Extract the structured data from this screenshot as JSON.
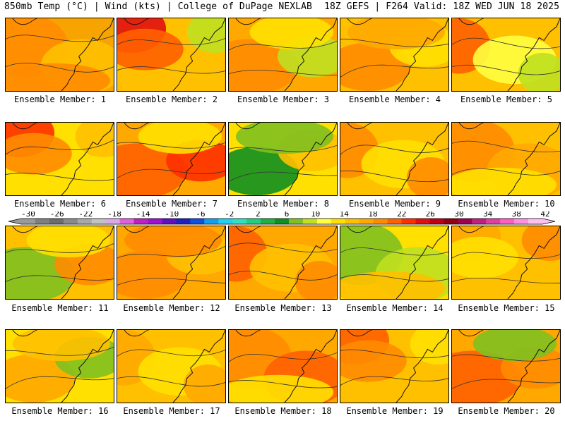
{
  "header": {
    "left": "850mb Temp (°C) | Wind (kts) | College of DuPage NEXLAB",
    "right": "18Z GEFS | F264 Valid: 18Z WED JUN 18 2025"
  },
  "colorbar": {
    "labels": [
      "-30",
      "-26",
      "-22",
      "-18",
      "-14",
      "-10",
      "-6",
      "-2",
      "2",
      "6",
      "10",
      "14",
      "18",
      "22",
      "26",
      "30",
      "34",
      "38",
      "42"
    ],
    "colors": [
      "#9a9a9a",
      "#7f7f7f",
      "#6c6c6c",
      "#8a8a8a",
      "#a8a8a8",
      "#c2c2c2",
      "#d8a8e8",
      "#e060e0",
      "#c020c0",
      "#a010d0",
      "#6010c0",
      "#2020c0",
      "#1050e0",
      "#10a0f0",
      "#20d0f0",
      "#30e0c0",
      "#20d080",
      "#20b040",
      "#109020",
      "#80c020",
      "#c0e020",
      "#ffff40",
      "#ffe000",
      "#ffc000",
      "#ffa800",
      "#ff8c00",
      "#ff6000",
      "#ff3000",
      "#e01010",
      "#c00010",
      "#900010",
      "#a00050",
      "#c02080",
      "#e040a0",
      "#ff60c0",
      "#ff90e0",
      "#ffc0f0"
    ]
  },
  "panels": [
    {
      "label": "Ensemble Member: 1",
      "base": "#f7a400",
      "blobs": [
        {
          "c": "#ff8c00"
        },
        {
          "c": "#ffc000"
        },
        {
          "c": "#ff8c00"
        }
      ]
    },
    {
      "label": "Ensemble Member: 2",
      "base": "#ffc000",
      "blobs": [
        {
          "c": "#e01010"
        },
        {
          "c": "#ff6000"
        },
        {
          "c": "#c0e020"
        }
      ]
    },
    {
      "label": "Ensemble Member: 3",
      "base": "#ffa800",
      "blobs": [
        {
          "c": "#ff8c00"
        },
        {
          "c": "#c0e020"
        },
        {
          "c": "#ffe000"
        }
      ]
    },
    {
      "label": "Ensemble Member: 4",
      "base": "#ffc000",
      "blobs": [
        {
          "c": "#ff8c00"
        },
        {
          "c": "#ffe000"
        },
        {
          "c": "#ffa800"
        }
      ]
    },
    {
      "label": "Ensemble Member: 5",
      "base": "#ffc000",
      "blobs": [
        {
          "c": "#ff6000"
        },
        {
          "c": "#ffff40"
        },
        {
          "c": "#c0e020"
        }
      ]
    },
    {
      "label": "Ensemble Member: 6",
      "base": "#ffe000",
      "blobs": [
        {
          "c": "#ff3000"
        },
        {
          "c": "#ff8c00"
        },
        {
          "c": "#ffc000"
        }
      ]
    },
    {
      "label": "Ensemble Member: 7",
      "base": "#ffa800",
      "blobs": [
        {
          "c": "#ff6000"
        },
        {
          "c": "#ff3000"
        },
        {
          "c": "#ffe000"
        }
      ]
    },
    {
      "label": "Ensemble Member: 8",
      "base": "#ffe000",
      "blobs": [
        {
          "c": "#109020"
        },
        {
          "c": "#ffc000"
        },
        {
          "c": "#80c020"
        }
      ]
    },
    {
      "label": "Ensemble Member: 9",
      "base": "#ffc000",
      "blobs": [
        {
          "c": "#ff8c00"
        },
        {
          "c": "#ffe000"
        },
        {
          "c": "#ff8c00"
        }
      ]
    },
    {
      "label": "Ensemble Member: 10",
      "base": "#ffc000",
      "blobs": [
        {
          "c": "#ff8c00"
        },
        {
          "c": "#ffa800"
        },
        {
          "c": "#ffe000"
        }
      ]
    },
    {
      "label": "Ensemble Member: 11",
      "base": "#ffc000",
      "blobs": [
        {
          "c": "#80c020"
        },
        {
          "c": "#ff8c00"
        },
        {
          "c": "#ffe000"
        }
      ]
    },
    {
      "label": "Ensemble Member: 12",
      "base": "#ffa800",
      "blobs": [
        {
          "c": "#ff8c00"
        },
        {
          "c": "#ffc000"
        },
        {
          "c": "#ff8c00"
        }
      ]
    },
    {
      "label": "Ensemble Member: 13",
      "base": "#ffa800",
      "blobs": [
        {
          "c": "#ff6000"
        },
        {
          "c": "#ffc000"
        },
        {
          "c": "#ff8c00"
        }
      ]
    },
    {
      "label": "Ensemble Member: 14",
      "base": "#ffe000",
      "blobs": [
        {
          "c": "#80c020"
        },
        {
          "c": "#c0e020"
        },
        {
          "c": "#ffc000"
        }
      ]
    },
    {
      "label": "Ensemble Member: 15",
      "base": "#ffc000",
      "blobs": [
        {
          "c": "#ffa800"
        },
        {
          "c": "#ffe000"
        },
        {
          "c": "#ff8c00"
        }
      ]
    },
    {
      "label": "Ensemble Member: 16",
      "base": "#ffe000",
      "blobs": [
        {
          "c": "#ffa800"
        },
        {
          "c": "#80c020"
        },
        {
          "c": "#ffc000"
        }
      ]
    },
    {
      "label": "Ensemble Member: 17",
      "base": "#ffc000",
      "blobs": [
        {
          "c": "#ffa800"
        },
        {
          "c": "#ffe000"
        },
        {
          "c": "#ffa800"
        }
      ]
    },
    {
      "label": "Ensemble Member: 18",
      "base": "#ffa800",
      "blobs": [
        {
          "c": "#ff8c00"
        },
        {
          "c": "#ff6000"
        },
        {
          "c": "#ffe000"
        }
      ]
    },
    {
      "label": "Ensemble Member: 19",
      "base": "#ffc000",
      "blobs": [
        {
          "c": "#ff6000"
        },
        {
          "c": "#ff8c00"
        },
        {
          "c": "#ffe000"
        }
      ]
    },
    {
      "label": "Ensemble Member: 20",
      "base": "#ffa800",
      "blobs": [
        {
          "c": "#ff6000"
        },
        {
          "c": "#ff8c00"
        },
        {
          "c": "#80c020"
        }
      ]
    }
  ]
}
